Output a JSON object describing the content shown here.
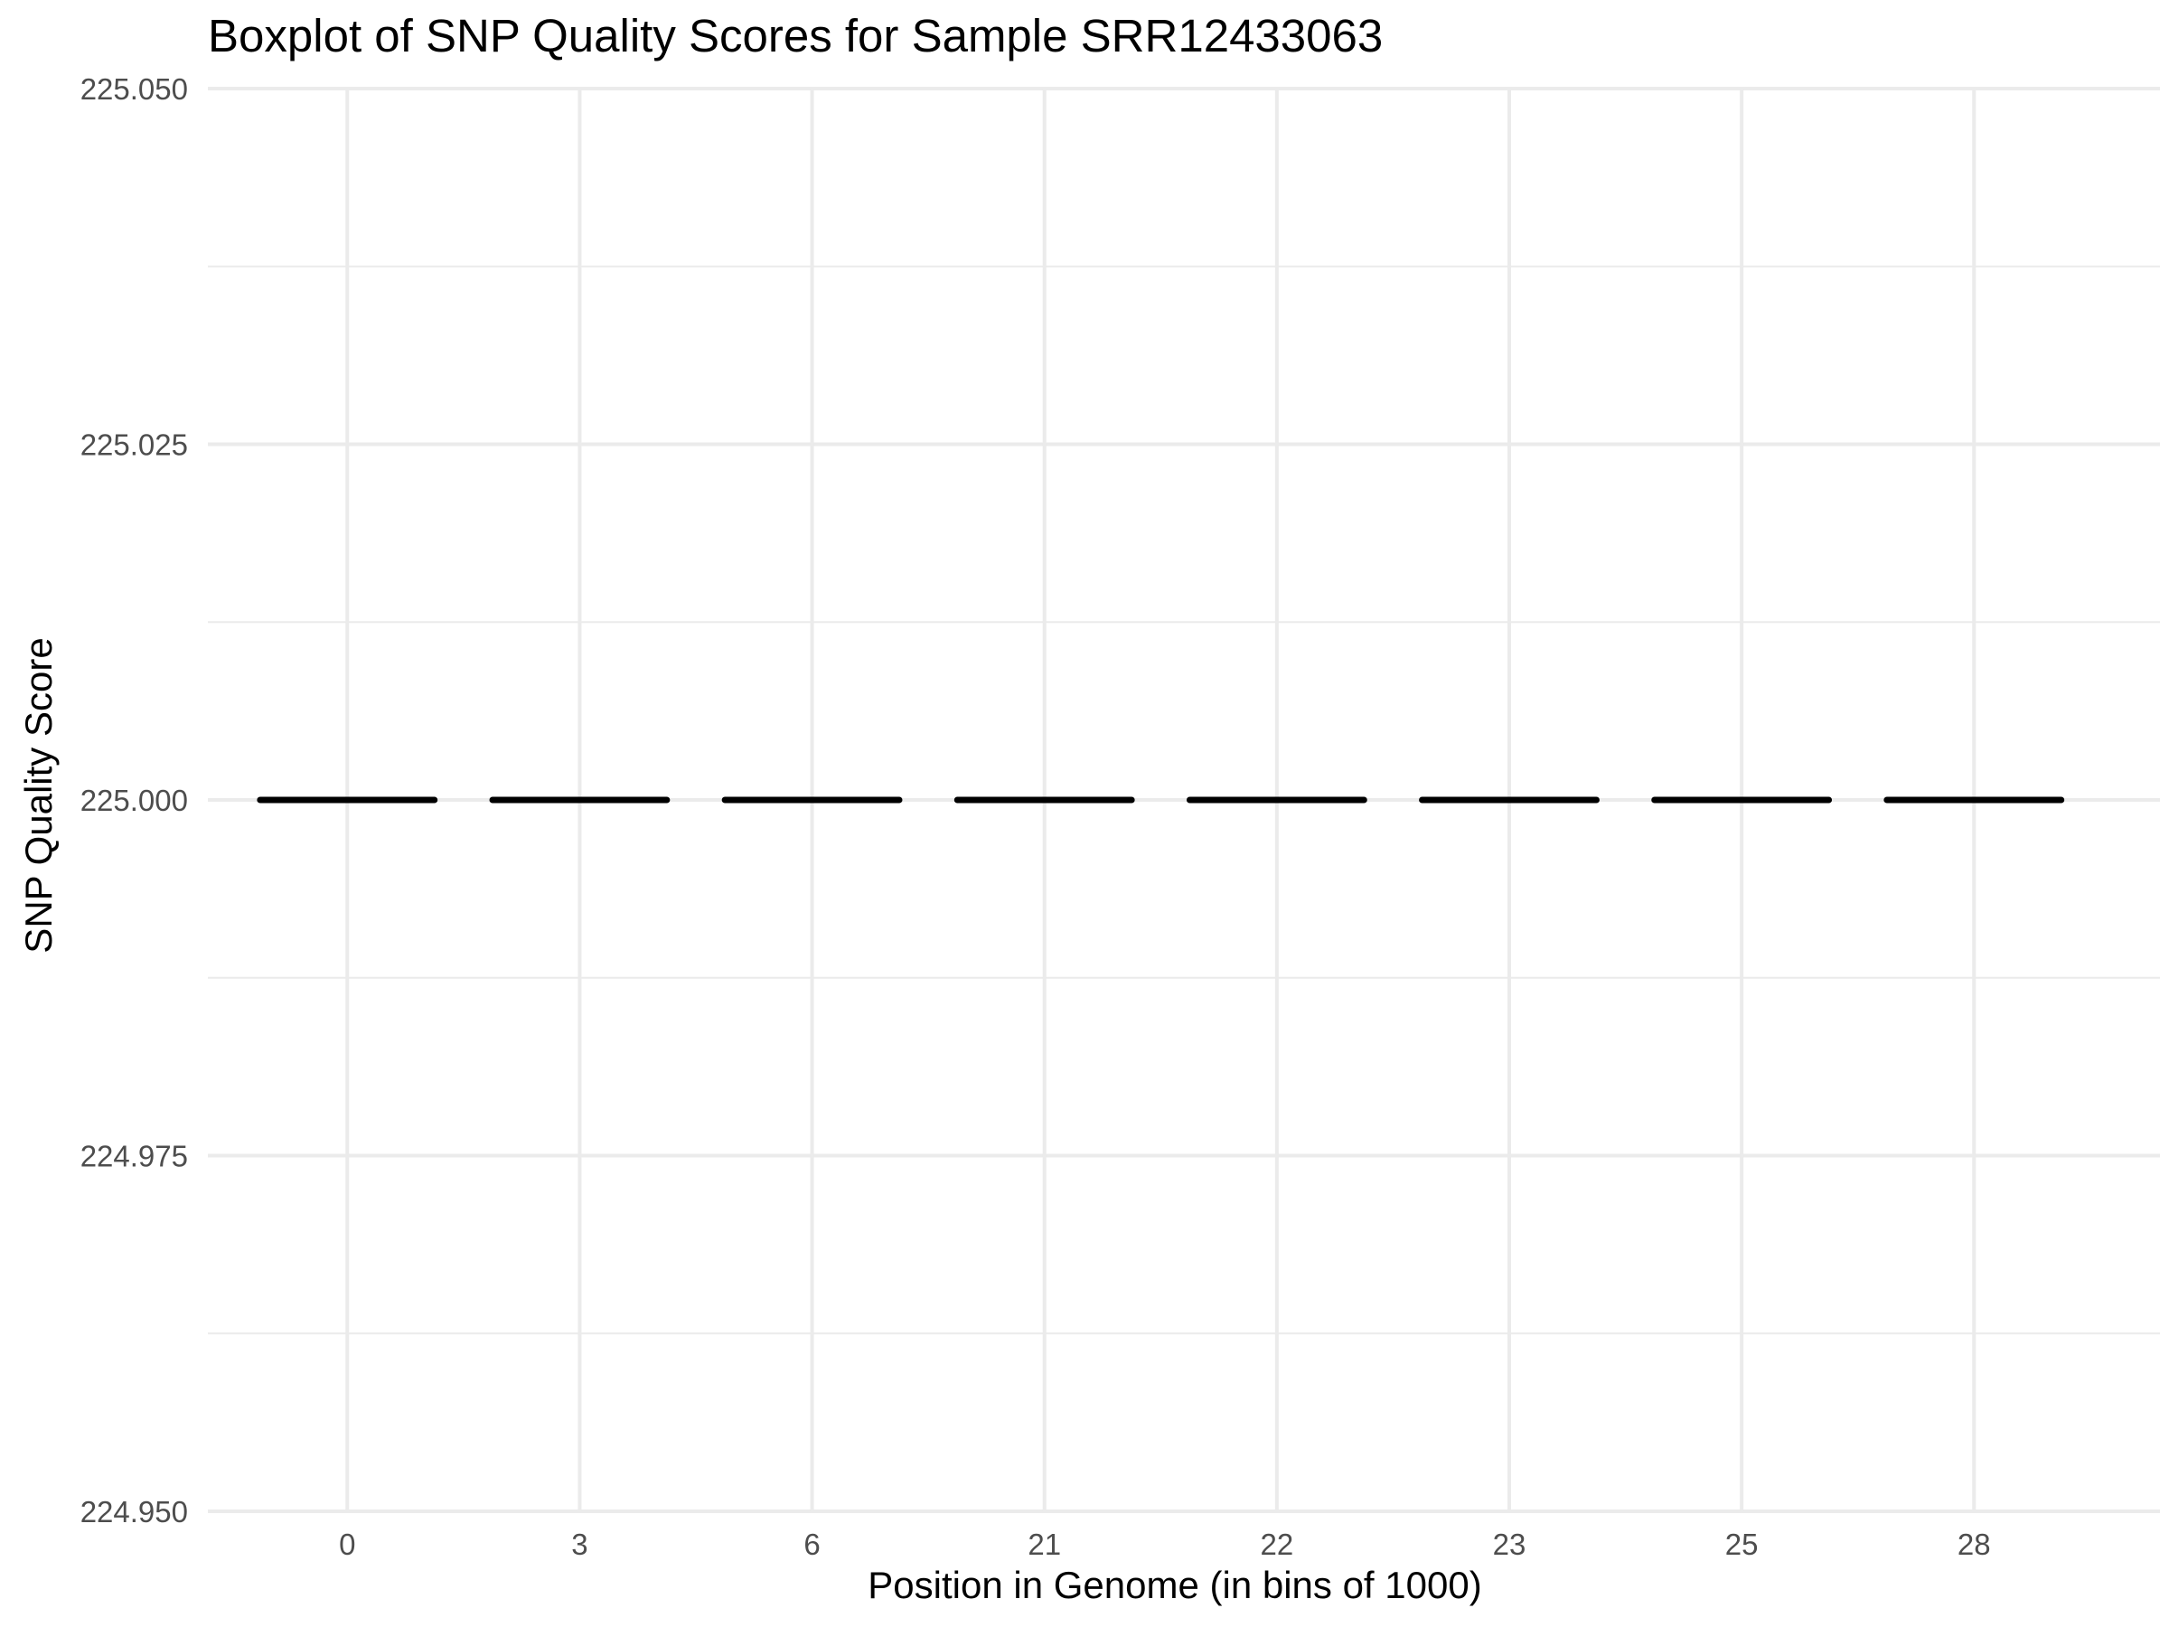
{
  "chart_data": {
    "type": "boxplot",
    "title": "Boxplot of SNP Quality Scores for Sample SRR12433063",
    "xlabel": "Position in Genome (in bins of 1000)",
    "ylabel": "SNP Quality Score",
    "categories": [
      "0",
      "3",
      "6",
      "21",
      "22",
      "23",
      "25",
      "28"
    ],
    "ylim": [
      224.95,
      225.05
    ],
    "yticks": [
      "224.950",
      "224.975",
      "225.000",
      "225.025",
      "225.050"
    ],
    "boxes": [
      {
        "category": "0",
        "min": 225,
        "q1": 225,
        "median": 225,
        "q3": 225,
        "max": 225
      },
      {
        "category": "3",
        "min": 225,
        "q1": 225,
        "median": 225,
        "q3": 225,
        "max": 225
      },
      {
        "category": "6",
        "min": 225,
        "q1": 225,
        "median": 225,
        "q3": 225,
        "max": 225
      },
      {
        "category": "21",
        "min": 225,
        "q1": 225,
        "median": 225,
        "q3": 225,
        "max": 225
      },
      {
        "category": "22",
        "min": 225,
        "q1": 225,
        "median": 225,
        "q3": 225,
        "max": 225
      },
      {
        "category": "23",
        "min": 225,
        "q1": 225,
        "median": 225,
        "q3": 225,
        "max": 225
      },
      {
        "category": "25",
        "min": 225,
        "q1": 225,
        "median": 225,
        "q3": 225,
        "max": 225
      },
      {
        "category": "28",
        "min": 225,
        "q1": 225,
        "median": 225,
        "q3": 225,
        "max": 225
      }
    ],
    "grid": true,
    "legend": "none",
    "box_color": "#000000",
    "grid_color": "#ebebeb"
  }
}
